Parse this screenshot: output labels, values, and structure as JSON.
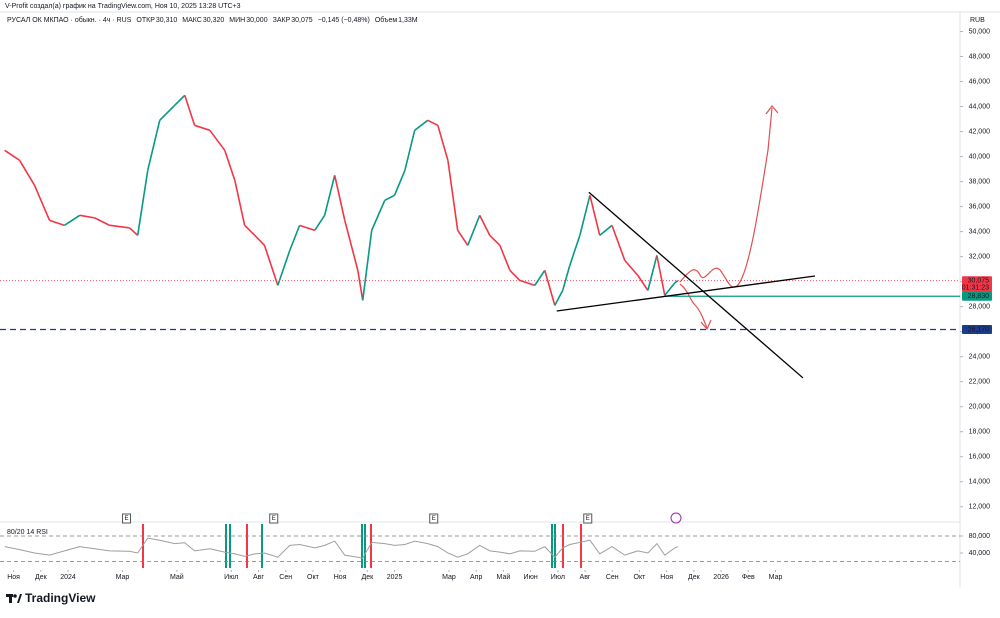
{
  "header": "V-Profit создал(а) график на TradingView.com, Ноя 10, 2025 13:28 UTC+3",
  "footer": "TradingView",
  "chart_data": {
    "type": "line",
    "title": "РУСАЛ ОК МКПАО · обыкн. · 4ч · RUS",
    "legend_items": [
      {
        "label": "ОТКР",
        "value": "30,310"
      },
      {
        "label": "МАКС",
        "value": "30,320"
      },
      {
        "label": "МИН",
        "value": "30,000"
      },
      {
        "label": "ЗАКР",
        "value": "30,075"
      },
      {
        "label": "",
        "value": "−0,145 (−0,48%)"
      },
      {
        "label": "Объем",
        "value": "1,33M"
      }
    ],
    "currency": "RUB",
    "up_color": "#089981",
    "down_color": "#f23645",
    "x": [
      -0.33,
      0.22,
      0.77,
      1.32,
      1.87,
      2.43,
      2.98,
      3.53,
      4.26,
      4.56,
      4.93,
      5.37,
      5.92,
      6.29,
      6.65,
      7.21,
      7.76,
      8.13,
      8.49,
      8.86,
      9.22,
      9.71,
      10.15,
      10.51,
      11.07,
      11.43,
      11.8,
      12.17,
      12.65,
      12.83,
      13.16,
      13.64,
      14.0,
      14.38,
      14.74,
      15.22,
      15.59,
      15.96,
      16.32,
      16.69,
      17.13,
      17.5,
      17.87,
      18.24,
      18.6,
      19.15,
      19.52,
      19.89,
      20.18,
      20.44,
      20.81,
      21.18,
      21.54,
      21.99,
      22.46,
      22.94,
      23.31,
      23.64,
      23.93,
      24.3,
      24.41
    ],
    "values": [
      40.5,
      39.7,
      37.7,
      34.9,
      34.5,
      35.3,
      35.1,
      34.5,
      34.3,
      33.7,
      38.9,
      42.9,
      44.1,
      44.9,
      42.5,
      42.1,
      40.5,
      38.1,
      34.5,
      33.7,
      32.9,
      29.7,
      32.5,
      34.5,
      34.1,
      35.3,
      38.5,
      34.9,
      30.9,
      28.5,
      34.1,
      36.5,
      36.9,
      38.9,
      42.1,
      42.9,
      42.5,
      39.7,
      34.1,
      32.9,
      35.3,
      33.7,
      32.9,
      30.9,
      30.1,
      29.7,
      30.9,
      28.1,
      29.3,
      31.3,
      33.7,
      36.9,
      33.7,
      34.5,
      31.7,
      30.5,
      29.3,
      32.1,
      28.9,
      29.9,
      30.075
    ],
    "xlim": [
      -0.5,
      34.78
    ],
    "xticks": [
      {
        "value": 0,
        "label": "Ноя"
      },
      {
        "value": 1,
        "label": "Дек"
      },
      {
        "value": 2,
        "label": "2024"
      },
      {
        "value": 4,
        "label": "Мар"
      },
      {
        "value": 6,
        "label": "Май"
      },
      {
        "value": 8,
        "label": "Июл"
      },
      {
        "value": 9,
        "label": "Авг"
      },
      {
        "value": 10,
        "label": "Сен"
      },
      {
        "value": 11,
        "label": "Окт"
      },
      {
        "value": 12,
        "label": "Ноя"
      },
      {
        "value": 13,
        "label": "Дек"
      },
      {
        "value": 14,
        "label": "2025"
      },
      {
        "value": 16,
        "label": "Мар"
      },
      {
        "value": 17,
        "label": "Апр"
      },
      {
        "value": 18,
        "label": "Май"
      },
      {
        "value": 19,
        "label": "Июн"
      },
      {
        "value": 20,
        "label": "Июл"
      },
      {
        "value": 21,
        "label": "Авг"
      },
      {
        "value": 22,
        "label": "Сен"
      },
      {
        "value": 23,
        "label": "Окт"
      },
      {
        "value": 24,
        "label": "Ноя"
      },
      {
        "value": 25,
        "label": "Дек"
      },
      {
        "value": 26,
        "label": "2026"
      },
      {
        "value": 27,
        "label": "Фев"
      },
      {
        "value": 28,
        "label": "Мар"
      }
    ],
    "ylim": [
      11.5,
      51.4
    ],
    "yticks": [
      {
        "value": 12,
        "label": "12,000"
      },
      {
        "value": 14,
        "label": "14,000"
      },
      {
        "value": 16,
        "label": "16,000"
      },
      {
        "value": 18,
        "label": "18,000"
      },
      {
        "value": 20,
        "label": "20,000"
      },
      {
        "value": 22,
        "label": "22,000"
      },
      {
        "value": 24,
        "label": "24,000"
      },
      {
        "value": 26,
        "label": "26,000"
      },
      {
        "value": 28,
        "label": "28,000"
      },
      {
        "value": 30,
        "label": "30,000"
      },
      {
        "value": 32,
        "label": "32,000"
      },
      {
        "value": 34,
        "label": "34,000"
      },
      {
        "value": 36,
        "label": "36,000"
      },
      {
        "value": 38,
        "label": "38,000"
      },
      {
        "value": 40,
        "label": "40,000"
      },
      {
        "value": 42,
        "label": "42,000"
      },
      {
        "value": 44,
        "label": "44,000"
      },
      {
        "value": 46,
        "label": "46,000"
      },
      {
        "value": 48,
        "label": "48,000"
      },
      {
        "value": 50,
        "label": "50,000"
      }
    ],
    "levels": [
      {
        "value": 30.075,
        "label": "30,075",
        "sublabel": "01:31:23",
        "color": "#f23645",
        "style": "dotted"
      },
      {
        "value": 28.83,
        "label": "28,830",
        "color": "#089981",
        "style": "solid",
        "from_x": 23.93
      },
      {
        "value": 26.17,
        "label": "26,170",
        "color": "#1e3a8a",
        "style": "dashed"
      }
    ],
    "trendlines": [
      {
        "x": [
          19.96,
          29.45
        ],
        "y": [
          27.65,
          30.45
        ],
        "color": "#000000"
      },
      {
        "x": [
          21.14,
          29.01
        ],
        "y": [
          37.15,
          22.3
        ],
        "color": "#000000"
      }
    ],
    "events": [
      {
        "x": 4.15,
        "label": "E"
      },
      {
        "x": 9.56,
        "label": "E"
      },
      {
        "x": 15.44,
        "label": "E"
      },
      {
        "x": 21.1,
        "label": "E"
      }
    ],
    "rsi": {
      "title": "80/20 14 RSI",
      "color": "#9e9e9e",
      "values": [
        55,
        48,
        40,
        35,
        45,
        55,
        50,
        45,
        44,
        40,
        75,
        70,
        62,
        64,
        45,
        50,
        42,
        38,
        32,
        38,
        40,
        30,
        58,
        60,
        52,
        58,
        68,
        35,
        30,
        28,
        65,
        62,
        58,
        60,
        68,
        62,
        55,
        40,
        30,
        38,
        58,
        45,
        42,
        38,
        45,
        44,
        55,
        30,
        52,
        60,
        65,
        70,
        38,
        55,
        35,
        45,
        40,
        62,
        35,
        52,
        55
      ],
      "ylim": [
        9.4,
        98.8
      ],
      "yticks": [
        {
          "value": 80,
          "label": "80,000"
        },
        {
          "value": 40,
          "label": "40,000"
        }
      ],
      "bands": [
        80,
        20
      ]
    }
  }
}
